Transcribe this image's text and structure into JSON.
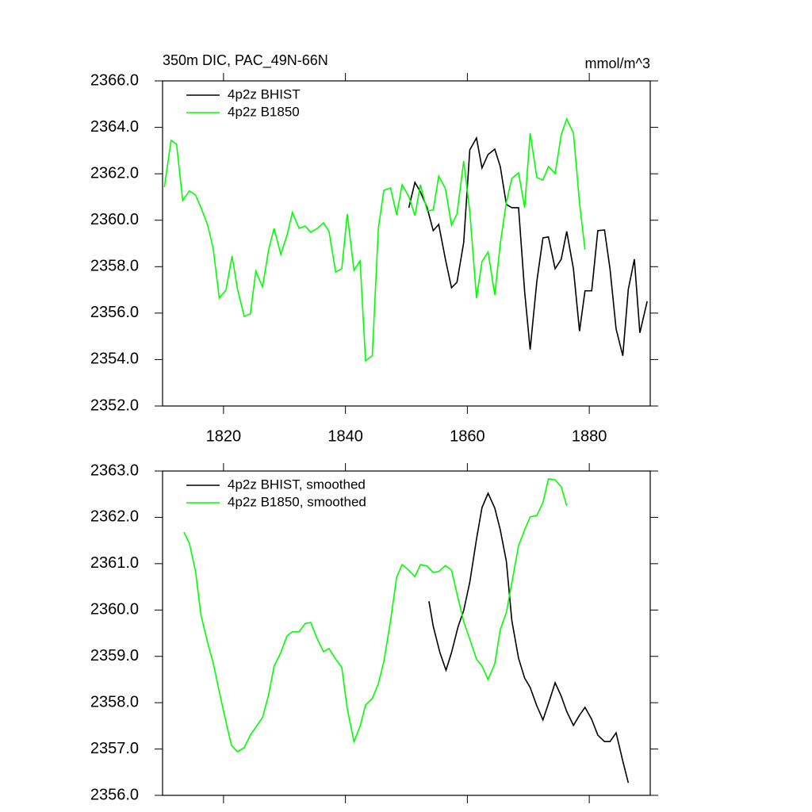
{
  "chart_data": [
    {
      "type": "line",
      "title": "350m DIC, PAC_49N-66N",
      "right_title": "mmol/m^3",
      "xlim": [
        1810,
        1890
      ],
      "xticks": [
        1820,
        1840,
        1860,
        1880
      ],
      "xtick_labels": true,
      "ylim": [
        2352,
        2366
      ],
      "yticks": [
        {
          "value": 2352,
          "label": "2352.0"
        },
        {
          "value": 2354,
          "label": "2354.0"
        },
        {
          "value": 2356,
          "label": "2356.0"
        },
        {
          "value": 2358,
          "label": "2358.0"
        },
        {
          "value": 2360,
          "label": "2360.0"
        },
        {
          "value": 2362,
          "label": "2362.0"
        },
        {
          "value": 2364,
          "label": "2364.0"
        },
        {
          "value": 2366,
          "label": "2366.0"
        }
      ],
      "legend": "upper-left",
      "series": [
        {
          "name": "4p2z BHIST",
          "color": "#000000",
          "x": [
            1850.4,
            1851.4,
            1852.3,
            1853.4,
            1854.4,
            1855.3,
            1856.4,
            1857.4,
            1858.3,
            1859.4,
            1860.4,
            1861.5,
            1862.4,
            1863.4,
            1864.5,
            1865.4,
            1866.4,
            1867.3,
            1868.4,
            1869.4,
            1870.3,
            1871.4,
            1872.4,
            1873.3,
            1874.4,
            1875.4,
            1876.3,
            1877.4,
            1878.4,
            1879.3,
            1880.4,
            1881.4,
            1882.5,
            1883.4,
            1884.4,
            1885.5,
            1886.4,
            1887.4,
            1888.3,
            1889.5
          ],
          "values": [
            2360.54,
            2361.63,
            2361.22,
            2360.54,
            2359.55,
            2359.82,
            2358.32,
            2357.09,
            2357.33,
            2359.04,
            2363.03,
            2363.54,
            2362.25,
            2362.83,
            2363.06,
            2362.31,
            2360.68,
            2360.54,
            2360.54,
            2356.92,
            2354.43,
            2357.37,
            2359.24,
            2359.28,
            2357.91,
            2358.32,
            2359.52,
            2357.91,
            2355.22,
            2356.96,
            2356.96,
            2359.55,
            2359.58,
            2357.91,
            2355.32,
            2354.16,
            2357.02,
            2358.32,
            2355.15,
            2356.51
          ]
        },
        {
          "name": "4p2z B1850",
          "color": "#00ff00",
          "x": [
            1810.3,
            1811.4,
            1812.3,
            1813.3,
            1814.4,
            1815.4,
            1816.3,
            1817.4,
            1818.3,
            1819.3,
            1820.4,
            1821.4,
            1822.3,
            1823.4,
            1824.4,
            1825.3,
            1826.4,
            1827.4,
            1828.3,
            1829.4,
            1830.4,
            1831.3,
            1832.4,
            1833.4,
            1834.3,
            1835.4,
            1836.4,
            1837.3,
            1838.4,
            1839.4,
            1840.3,
            1841.4,
            1842.4,
            1843.3,
            1844.4,
            1845.4,
            1846.3,
            1847.4,
            1848.4,
            1849.3,
            1850.4,
            1851.4,
            1852.3,
            1853.4,
            1854.4,
            1855.3,
            1856.4,
            1857.4,
            1858.3,
            1859.4,
            1860.4,
            1861.5,
            1862.4,
            1863.4,
            1864.5,
            1865.4,
            1866.4,
            1867.3,
            1868.4,
            1869.4,
            1870.3,
            1871.4,
            1872.4,
            1873.3,
            1874.4,
            1875.4,
            1876.3,
            1877.4,
            1878.4,
            1879.3
          ],
          "values": [
            2361.43,
            2363.44,
            2363.27,
            2360.85,
            2361.26,
            2361.09,
            2360.54,
            2359.79,
            2358.8,
            2356.65,
            2356.99,
            2358.46,
            2357.02,
            2355.86,
            2355.97,
            2357.81,
            2357.13,
            2358.73,
            2359.65,
            2358.53,
            2359.34,
            2360.33,
            2359.65,
            2359.75,
            2359.48,
            2359.65,
            2359.89,
            2359.52,
            2357.77,
            2357.91,
            2360.27,
            2357.84,
            2358.25,
            2353.95,
            2354.16,
            2359.65,
            2361.29,
            2361.39,
            2360.23,
            2361.53,
            2361.02,
            2360.2,
            2361.53,
            2360.4,
            2360.44,
            2361.9,
            2361.36,
            2359.79,
            2360.27,
            2362.55,
            2360.37,
            2356.65,
            2358.22,
            2358.63,
            2356.78,
            2359.0,
            2360.78,
            2361.8,
            2362.04,
            2360.54,
            2363.75,
            2361.84,
            2361.73,
            2362.31,
            2362.01,
            2363.68,
            2364.36,
            2363.75,
            2360.74,
            2358.73
          ]
        }
      ]
    },
    {
      "type": "line",
      "xlim": [
        1810,
        1890
      ],
      "xticks": [
        1820,
        1840,
        1860,
        1880
      ],
      "xtick_labels": false,
      "ylim": [
        2356,
        2363
      ],
      "yticks": [
        {
          "value": 2356,
          "label": "2356.0"
        },
        {
          "value": 2357,
          "label": "2357.0"
        },
        {
          "value": 2358,
          "label": "2358.0"
        },
        {
          "value": 2359,
          "label": "2359.0"
        },
        {
          "value": 2360,
          "label": "2360.0"
        },
        {
          "value": 2361,
          "label": "2361.0"
        },
        {
          "value": 2362,
          "label": "2362.0"
        },
        {
          "value": 2363,
          "label": "2363.0"
        }
      ],
      "legend": "upper-left",
      "series": [
        {
          "name": "4p2z BHIST, smoothed",
          "color": "#000000",
          "x": [
            1853.7,
            1854.4,
            1855.5,
            1856.5,
            1857.4,
            1858.5,
            1859.4,
            1860.4,
            1861.5,
            1862.4,
            1863.4,
            1864.5,
            1865.4,
            1866.4,
            1867.3,
            1868.4,
            1869.4,
            1870.3,
            1871.4,
            1872.4,
            1873.3,
            1874.4,
            1875.4,
            1876.3,
            1877.4,
            1878.4,
            1879.3,
            1880.4,
            1881.4,
            1882.5,
            1883.4,
            1884.4,
            1885.5,
            1886.4
          ],
          "values": [
            2360.19,
            2359.65,
            2359.08,
            2358.7,
            2359.08,
            2359.65,
            2359.99,
            2360.6,
            2361.53,
            2362.21,
            2362.52,
            2362.2,
            2361.73,
            2361.05,
            2359.77,
            2358.96,
            2358.53,
            2358.33,
            2357.93,
            2357.63,
            2357.98,
            2358.43,
            2358.14,
            2357.81,
            2357.51,
            2357.73,
            2357.9,
            2357.64,
            2357.3,
            2357.16,
            2357.16,
            2357.35,
            2356.74,
            2356.27
          ]
        },
        {
          "name": "4p2z B1850, smoothed",
          "color": "#00ff00",
          "x": [
            1813.5,
            1814.4,
            1815.4,
            1816.3,
            1817.4,
            1818.3,
            1819.3,
            1820.4,
            1821.3,
            1822.3,
            1823.4,
            1824.4,
            1825.3,
            1826.4,
            1827.4,
            1828.3,
            1829.4,
            1830.4,
            1831.3,
            1832.4,
            1833.4,
            1834.3,
            1835.4,
            1836.4,
            1837.3,
            1838.4,
            1839.4,
            1840.3,
            1841.4,
            1842.4,
            1843.3,
            1844.4,
            1845.4,
            1846.3,
            1847.4,
            1848.4,
            1849.3,
            1850.4,
            1851.4,
            1852.3,
            1853.4,
            1854.4,
            1855.3,
            1856.4,
            1857.4,
            1858.3,
            1859.4,
            1860.4,
            1861.5,
            1862.4,
            1863.4,
            1864.5,
            1865.4,
            1866.4,
            1867.3,
            1868.4,
            1869.4,
            1870.3,
            1871.4,
            1872.4,
            1873.3,
            1874.4,
            1875.4,
            1876.3
          ],
          "values": [
            2361.68,
            2361.44,
            2360.84,
            2359.89,
            2359.29,
            2358.86,
            2358.24,
            2357.59,
            2357.08,
            2356.94,
            2357.03,
            2357.3,
            2357.47,
            2357.68,
            2358.17,
            2358.79,
            2359.08,
            2359.44,
            2359.53,
            2359.53,
            2359.71,
            2359.73,
            2359.37,
            2359.1,
            2359.17,
            2358.94,
            2358.76,
            2357.87,
            2357.16,
            2357.49,
            2357.95,
            2358.09,
            2358.41,
            2358.89,
            2359.77,
            2360.71,
            2360.98,
            2360.86,
            2360.72,
            2360.98,
            2360.95,
            2360.81,
            2360.83,
            2360.96,
            2360.86,
            2360.35,
            2359.75,
            2359.37,
            2358.94,
            2358.79,
            2358.5,
            2358.84,
            2359.58,
            2359.95,
            2360.59,
            2361.39,
            2361.73,
            2362.01,
            2362.04,
            2362.32,
            2362.83,
            2362.81,
            2362.66,
            2362.25
          ]
        }
      ]
    }
  ]
}
